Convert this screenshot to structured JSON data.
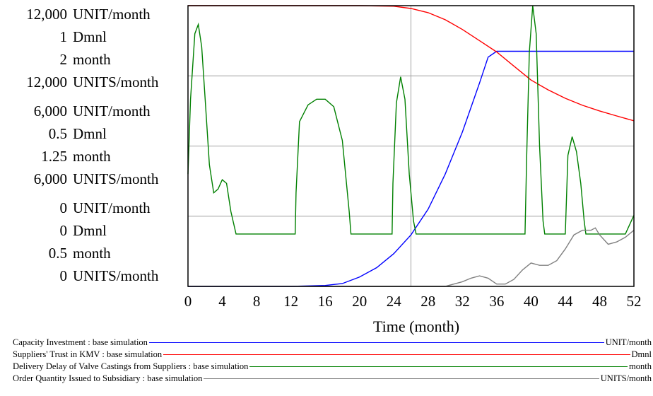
{
  "chart_data": {
    "type": "line",
    "xlabel": "Time (month)",
    "xlim": [
      0,
      52
    ],
    "x_ticks": [
      "0",
      "4",
      "8",
      "12",
      "16",
      "20",
      "24",
      "28",
      "32",
      "36",
      "40",
      "44",
      "48",
      "52"
    ],
    "grid": true,
    "y_tick_groups": [
      [
        "12,000",
        "1",
        "2",
        "12,000"
      ],
      [
        "6,000",
        "0.5",
        "1.25",
        "6,000"
      ],
      [
        "0",
        "0",
        "0.5",
        "0"
      ]
    ],
    "y_units": [
      "UNIT/month",
      "Dmnl",
      "month",
      "UNITS/month"
    ],
    "series": [
      {
        "name": "Capacity Investment : base simulation",
        "unit": "UNIT/month",
        "color": "#0000ff",
        "ylim": [
          0,
          12000
        ],
        "points": [
          [
            0,
            0
          ],
          [
            12,
            0
          ],
          [
            16,
            40
          ],
          [
            18,
            120
          ],
          [
            20,
            400
          ],
          [
            22,
            800
          ],
          [
            24,
            1400
          ],
          [
            26,
            2200
          ],
          [
            28,
            3300
          ],
          [
            30,
            4800
          ],
          [
            32,
            6600
          ],
          [
            34,
            8700
          ],
          [
            35,
            9800
          ],
          [
            36,
            10050
          ],
          [
            38,
            10050
          ],
          [
            40,
            10050
          ],
          [
            44,
            10050
          ],
          [
            48,
            10050
          ],
          [
            52,
            10050
          ]
        ]
      },
      {
        "name": "Suppliers' Trust in KMV : base simulation",
        "unit": "Dmnl",
        "color": "#ff0000",
        "ylim": [
          0,
          1
        ],
        "points": [
          [
            0,
            1.0
          ],
          [
            20,
            1.0
          ],
          [
            24,
            0.998
          ],
          [
            26,
            0.99
          ],
          [
            28,
            0.975
          ],
          [
            30,
            0.95
          ],
          [
            32,
            0.915
          ],
          [
            34,
            0.875
          ],
          [
            36,
            0.835
          ],
          [
            38,
            0.785
          ],
          [
            40,
            0.735
          ],
          [
            42,
            0.7
          ],
          [
            44,
            0.67
          ],
          [
            46,
            0.645
          ],
          [
            48,
            0.625
          ],
          [
            50,
            0.607
          ],
          [
            52,
            0.59
          ]
        ]
      },
      {
        "name": "Delivery Delay of Valve Castings from Suppliers : base simulation",
        "unit": "month",
        "color": "#008000",
        "ylim": [
          0.5,
          2
        ],
        "points": [
          [
            0,
            1.1
          ],
          [
            0.3,
            1.5
          ],
          [
            0.8,
            1.85
          ],
          [
            1.2,
            1.9
          ],
          [
            1.6,
            1.78
          ],
          [
            2,
            1.5
          ],
          [
            2.5,
            1.15
          ],
          [
            3,
            1.0
          ],
          [
            3.5,
            1.02
          ],
          [
            4,
            1.07
          ],
          [
            4.5,
            1.05
          ],
          [
            5,
            0.9
          ],
          [
            5.6,
            0.78
          ],
          [
            6,
            0.78
          ],
          [
            12.5,
            0.78
          ],
          [
            12.6,
            1.0
          ],
          [
            13,
            1.38
          ],
          [
            14,
            1.47
          ],
          [
            15,
            1.5
          ],
          [
            16,
            1.5
          ],
          [
            17,
            1.46
          ],
          [
            18,
            1.28
          ],
          [
            18.8,
            0.9
          ],
          [
            19,
            0.78
          ],
          [
            23.8,
            0.78
          ],
          [
            23.9,
            1.05
          ],
          [
            24.3,
            1.48
          ],
          [
            24.8,
            1.62
          ],
          [
            25.3,
            1.5
          ],
          [
            25.8,
            1.1
          ],
          [
            26.3,
            0.85
          ],
          [
            26.6,
            0.78
          ],
          [
            39.3,
            0.78
          ],
          [
            39.5,
            1.2
          ],
          [
            39.8,
            1.75
          ],
          [
            40.2,
            2.0
          ],
          [
            40.6,
            1.85
          ],
          [
            41,
            1.25
          ],
          [
            41.4,
            0.85
          ],
          [
            41.6,
            0.78
          ],
          [
            44,
            0.78
          ],
          [
            44.3,
            1.2
          ],
          [
            44.8,
            1.3
          ],
          [
            45.3,
            1.22
          ],
          [
            45.8,
            1.05
          ],
          [
            46.2,
            0.85
          ],
          [
            46.4,
            0.78
          ],
          [
            51,
            0.78
          ],
          [
            52,
            0.88
          ]
        ]
      },
      {
        "name": "Order Quantity Issued to Subsidiary : base simulation",
        "unit": "UNITS/month",
        "color": "#808080",
        "ylim": [
          0,
          12000
        ],
        "points": [
          [
            0,
            0
          ],
          [
            30,
            0
          ],
          [
            31,
            100
          ],
          [
            32,
            200
          ],
          [
            33,
            350
          ],
          [
            34,
            450
          ],
          [
            35,
            350
          ],
          [
            36,
            100
          ],
          [
            37,
            100
          ],
          [
            38,
            300
          ],
          [
            39,
            700
          ],
          [
            40,
            1000
          ],
          [
            41,
            900
          ],
          [
            42,
            900
          ],
          [
            43,
            1100
          ],
          [
            44,
            1600
          ],
          [
            45,
            2200
          ],
          [
            46,
            2400
          ],
          [
            47,
            2400
          ],
          [
            47.5,
            2500
          ],
          [
            48,
            2200
          ],
          [
            49,
            1800
          ],
          [
            50,
            1900
          ],
          [
            51,
            2100
          ],
          [
            52,
            2400
          ]
        ]
      }
    ]
  }
}
